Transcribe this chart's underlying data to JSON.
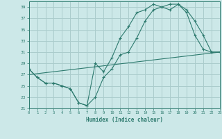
{
  "title": "",
  "xlabel": "Humidex (Indice chaleur)",
  "bg_color": "#cce8e8",
  "grid_color": "#aacccc",
  "line_color": "#2d7a6e",
  "xlim": [
    0,
    23
  ],
  "ylim": [
    21,
    40
  ],
  "yticks": [
    21,
    23,
    25,
    27,
    29,
    31,
    33,
    35,
    37,
    39
  ],
  "xticks": [
    0,
    1,
    2,
    3,
    4,
    5,
    6,
    7,
    8,
    9,
    10,
    11,
    12,
    13,
    14,
    15,
    16,
    17,
    18,
    19,
    20,
    21,
    22,
    23
  ],
  "line1_x": [
    0,
    1,
    2,
    3,
    4,
    5,
    6,
    7,
    8,
    9,
    10,
    11,
    12,
    13,
    14,
    15,
    16,
    17,
    18,
    19,
    20,
    21,
    22,
    23
  ],
  "line1_y": [
    28.0,
    26.5,
    25.5,
    25.5,
    25.0,
    24.5,
    22.0,
    21.5,
    23.0,
    26.5,
    28.0,
    30.5,
    31.0,
    33.5,
    36.5,
    38.5,
    39.0,
    38.5,
    39.5,
    38.0,
    34.0,
    31.5,
    31.0,
    31.0
  ],
  "line2_x": [
    0,
    23
  ],
  "line2_y": [
    27.0,
    31.0
  ],
  "line3_x": [
    0,
    1,
    2,
    3,
    4,
    5,
    6,
    7,
    8,
    9,
    10,
    11,
    12,
    13,
    14,
    15,
    16,
    17,
    18,
    19,
    20,
    21,
    22,
    23
  ],
  "line3_y": [
    28.0,
    26.5,
    25.5,
    25.5,
    25.0,
    24.5,
    22.0,
    21.5,
    29.0,
    27.5,
    30.0,
    33.5,
    35.5,
    38.0,
    38.5,
    39.5,
    39.0,
    39.5,
    39.5,
    38.5,
    36.5,
    34.0,
    31.0,
    31.0
  ]
}
